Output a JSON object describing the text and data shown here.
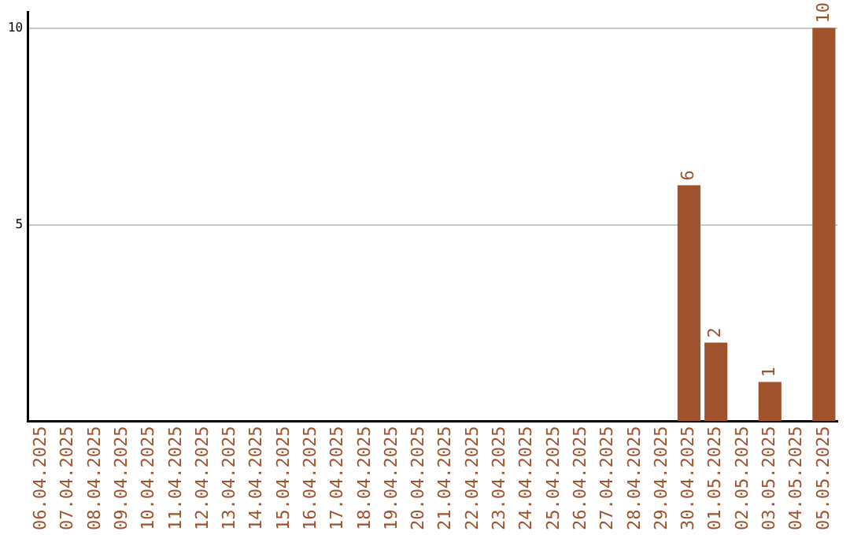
{
  "chart_data": {
    "type": "bar",
    "categories": [
      "06.04.2025",
      "07.04.2025",
      "08.04.2025",
      "09.04.2025",
      "10.04.2025",
      "11.04.2025",
      "12.04.2025",
      "13.04.2025",
      "14.04.2025",
      "15.04.2025",
      "16.04.2025",
      "17.04.2025",
      "18.04.2025",
      "19.04.2025",
      "20.04.2025",
      "21.04.2025",
      "22.04.2025",
      "23.04.2025",
      "24.04.2025",
      "25.04.2025",
      "26.04.2025",
      "27.04.2025",
      "28.04.2025",
      "29.04.2025",
      "30.04.2025",
      "01.05.2025",
      "02.05.2025",
      "03.05.2025",
      "04.05.2025",
      "05.05.2025"
    ],
    "values": [
      0,
      0,
      0,
      0,
      0,
      0,
      0,
      0,
      0,
      0,
      0,
      0,
      0,
      0,
      0,
      0,
      0,
      0,
      0,
      0,
      0,
      0,
      0,
      0,
      6,
      2,
      0,
      1,
      0,
      10
    ],
    "value_labels": [
      null,
      null,
      null,
      null,
      null,
      null,
      null,
      null,
      null,
      null,
      null,
      null,
      null,
      null,
      null,
      null,
      null,
      null,
      null,
      null,
      null,
      null,
      null,
      null,
      "6",
      "2",
      null,
      "1",
      null,
      "10"
    ],
    "color": "#a0522d",
    "ylim": [
      0,
      10.4
    ],
    "yticks": [
      5,
      10
    ],
    "grid": "y",
    "legend": false
  }
}
